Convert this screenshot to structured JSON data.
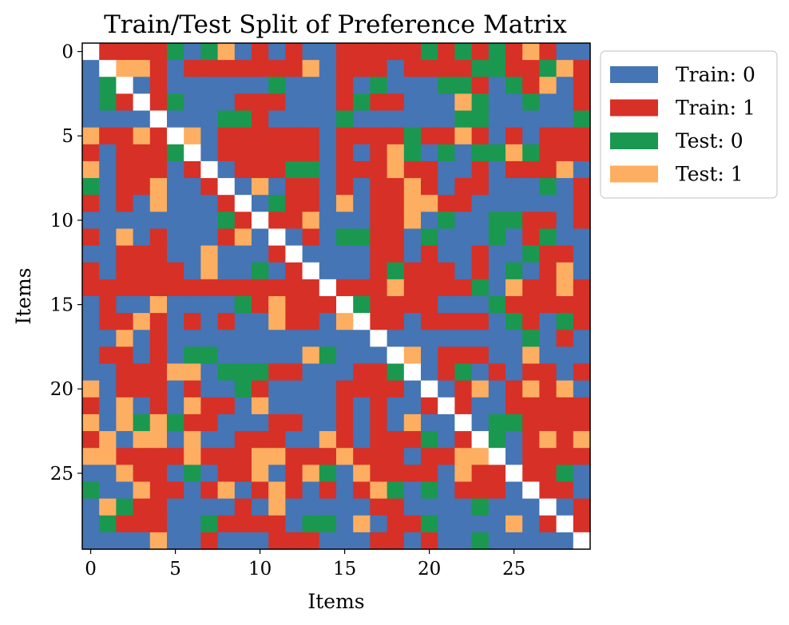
{
  "chart_data": {
    "type": "heatmap",
    "title": "Train/Test Split of Preference Matrix",
    "xlabel": "Items",
    "ylabel": "Items",
    "n": 30,
    "x_ticks": [
      0,
      5,
      10,
      15,
      20,
      25
    ],
    "y_ticks": [
      0,
      5,
      10,
      15,
      20,
      25
    ],
    "legend": {
      "placement": "outside-right",
      "entries": [
        {
          "code": 0,
          "label": "Train: 0",
          "color": "#4575b4"
        },
        {
          "code": 1,
          "label": "Train: 1",
          "color": "#d73027"
        },
        {
          "code": 2,
          "label": "Test: 0",
          "color": "#1a9850"
        },
        {
          "code": 3,
          "label": "Test: 1",
          "color": "#fdae61"
        }
      ]
    },
    "diagonal": "blank",
    "note_matrix_codes": "0=Train:0, 1=Train:1, 2=Test:0, 3=Test:1, -1=diagonal (empty)",
    "matrix": [
      [
        -1,
        1,
        1,
        1,
        1,
        2,
        0,
        2,
        3,
        0,
        1,
        0,
        1,
        0,
        0,
        1,
        1,
        1,
        1,
        1,
        2,
        1,
        2,
        1,
        2,
        1,
        3,
        1,
        0,
        0
      ],
      [
        0,
        -1,
        3,
        3,
        1,
        0,
        1,
        1,
        1,
        1,
        1,
        1,
        1,
        3,
        0,
        1,
        1,
        1,
        0,
        1,
        1,
        1,
        1,
        2,
        2,
        1,
        1,
        2,
        3,
        1
      ],
      [
        0,
        2,
        -1,
        0,
        1,
        0,
        0,
        0,
        0,
        0,
        0,
        2,
        0,
        0,
        0,
        1,
        0,
        2,
        0,
        0,
        0,
        2,
        2,
        1,
        0,
        2,
        1,
        3,
        0,
        1
      ],
      [
        0,
        2,
        1,
        -1,
        1,
        2,
        0,
        0,
        0,
        1,
        1,
        1,
        0,
        0,
        0,
        1,
        2,
        1,
        1,
        0,
        0,
        0,
        3,
        2,
        0,
        0,
        2,
        0,
        0,
        1
      ],
      [
        0,
        0,
        0,
        0,
        -1,
        0,
        0,
        0,
        2,
        2,
        1,
        0,
        0,
        0,
        0,
        2,
        0,
        0,
        0,
        0,
        0,
        0,
        2,
        2,
        0,
        0,
        0,
        0,
        0,
        2
      ],
      [
        3,
        1,
        1,
        3,
        1,
        -1,
        3,
        0,
        1,
        1,
        1,
        1,
        1,
        1,
        0,
        1,
        1,
        1,
        1,
        2,
        1,
        1,
        3,
        1,
        0,
        1,
        0,
        1,
        1,
        1
      ],
      [
        1,
        0,
        1,
        1,
        1,
        2,
        -1,
        0,
        1,
        1,
        1,
        1,
        1,
        1,
        0,
        1,
        0,
        1,
        3,
        2,
        0,
        2,
        0,
        2,
        2,
        3,
        2,
        1,
        1,
        1
      ],
      [
        3,
        0,
        1,
        1,
        1,
        0,
        1,
        -1,
        0,
        1,
        1,
        1,
        2,
        2,
        0,
        1,
        1,
        1,
        3,
        1,
        1,
        0,
        0,
        1,
        0,
        1,
        1,
        1,
        3,
        0
      ],
      [
        2,
        0,
        1,
        1,
        3,
        0,
        0,
        1,
        -1,
        0,
        3,
        0,
        1,
        1,
        0,
        1,
        0,
        1,
        1,
        3,
        1,
        0,
        1,
        1,
        0,
        0,
        0,
        2,
        0,
        1
      ],
      [
        1,
        0,
        1,
        0,
        3,
        0,
        0,
        0,
        1,
        -1,
        0,
        2,
        1,
        1,
        0,
        3,
        0,
        1,
        1,
        3,
        3,
        1,
        1,
        0,
        0,
        0,
        0,
        0,
        0,
        1
      ],
      [
        0,
        0,
        0,
        0,
        0,
        0,
        0,
        0,
        2,
        1,
        -1,
        1,
        1,
        3,
        0,
        0,
        0,
        1,
        1,
        3,
        0,
        2,
        0,
        0,
        2,
        2,
        1,
        1,
        0,
        1
      ],
      [
        1,
        0,
        3,
        0,
        1,
        0,
        0,
        0,
        1,
        3,
        0,
        -1,
        0,
        1,
        0,
        2,
        2,
        1,
        1,
        0,
        2,
        0,
        0,
        0,
        2,
        0,
        1,
        2,
        0,
        0
      ],
      [
        0,
        0,
        1,
        1,
        1,
        0,
        0,
        3,
        0,
        0,
        0,
        1,
        -1,
        0,
        0,
        0,
        0,
        1,
        1,
        0,
        1,
        0,
        0,
        1,
        0,
        0,
        2,
        1,
        1,
        0
      ],
      [
        1,
        0,
        1,
        1,
        1,
        1,
        0,
        3,
        0,
        0,
        2,
        0,
        1,
        -1,
        0,
        0,
        0,
        1,
        2,
        1,
        1,
        1,
        0,
        1,
        0,
        2,
        0,
        1,
        3,
        0
      ],
      [
        1,
        1,
        1,
        1,
        1,
        1,
        1,
        1,
        1,
        1,
        1,
        1,
        1,
        1,
        -1,
        1,
        1,
        1,
        3,
        1,
        1,
        1,
        1,
        2,
        0,
        3,
        1,
        1,
        3,
        1
      ],
      [
        0,
        1,
        0,
        0,
        3,
        0,
        0,
        0,
        0,
        2,
        1,
        3,
        1,
        1,
        1,
        -1,
        2,
        1,
        1,
        1,
        1,
        0,
        0,
        0,
        2,
        1,
        1,
        1,
        1,
        1
      ],
      [
        0,
        1,
        1,
        3,
        1,
        0,
        1,
        0,
        1,
        0,
        0,
        3,
        1,
        1,
        0,
        3,
        -1,
        1,
        1,
        0,
        1,
        1,
        1,
        1,
        0,
        2,
        1,
        0,
        2,
        1
      ],
      [
        0,
        0,
        3,
        0,
        1,
        0,
        0,
        0,
        0,
        0,
        0,
        0,
        0,
        0,
        0,
        0,
        0,
        -1,
        0,
        0,
        0,
        0,
        0,
        0,
        0,
        0,
        2,
        0,
        1,
        0
      ],
      [
        0,
        1,
        1,
        0,
        1,
        0,
        2,
        2,
        0,
        0,
        0,
        0,
        0,
        3,
        2,
        0,
        0,
        0,
        -1,
        3,
        0,
        1,
        1,
        1,
        0,
        0,
        3,
        0,
        0,
        0
      ],
      [
        0,
        0,
        1,
        1,
        1,
        3,
        3,
        0,
        2,
        2,
        2,
        1,
        1,
        0,
        0,
        0,
        1,
        1,
        2,
        -1,
        0,
        1,
        2,
        0,
        1,
        0,
        1,
        1,
        0,
        1
      ],
      [
        3,
        0,
        1,
        1,
        1,
        0,
        1,
        0,
        0,
        2,
        1,
        0,
        0,
        0,
        0,
        1,
        1,
        1,
        1,
        0,
        -1,
        0,
        1,
        3,
        0,
        1,
        3,
        1,
        3,
        0
      ],
      [
        1,
        0,
        3,
        0,
        1,
        0,
        3,
        1,
        1,
        0,
        3,
        0,
        0,
        0,
        0,
        1,
        0,
        1,
        0,
        0,
        1,
        -1,
        1,
        0,
        0,
        1,
        1,
        1,
        1,
        1
      ],
      [
        3,
        0,
        3,
        2,
        3,
        2,
        1,
        1,
        0,
        0,
        0,
        1,
        1,
        0,
        0,
        1,
        0,
        1,
        0,
        3,
        0,
        0,
        -1,
        0,
        2,
        2,
        1,
        1,
        1,
        1
      ],
      [
        1,
        3,
        0,
        3,
        3,
        0,
        3,
        0,
        0,
        1,
        1,
        1,
        0,
        0,
        3,
        1,
        0,
        1,
        1,
        1,
        2,
        0,
        1,
        -1,
        2,
        0,
        1,
        3,
        1,
        3
      ],
      [
        3,
        3,
        1,
        1,
        1,
        1,
        3,
        1,
        1,
        1,
        3,
        3,
        1,
        1,
        1,
        3,
        1,
        1,
        1,
        0,
        1,
        1,
        3,
        3,
        -1,
        0,
        1,
        1,
        1,
        1
      ],
      [
        0,
        0,
        3,
        1,
        1,
        0,
        2,
        0,
        1,
        1,
        3,
        0,
        1,
        3,
        2,
        0,
        3,
        1,
        1,
        1,
        1,
        0,
        3,
        1,
        1,
        -1,
        1,
        1,
        2,
        0
      ],
      [
        2,
        0,
        0,
        3,
        1,
        1,
        0,
        1,
        3,
        0,
        1,
        3,
        1,
        0,
        1,
        0,
        1,
        3,
        2,
        0,
        2,
        0,
        1,
        1,
        1,
        0,
        -1,
        1,
        1,
        0
      ],
      [
        0,
        3,
        2,
        1,
        1,
        0,
        0,
        0,
        0,
        1,
        0,
        3,
        0,
        0,
        0,
        0,
        0,
        1,
        1,
        0,
        0,
        0,
        0,
        2,
        0,
        0,
        0,
        -1,
        0,
        1
      ],
      [
        0,
        2,
        1,
        1,
        1,
        0,
        0,
        2,
        1,
        1,
        1,
        1,
        0,
        2,
        2,
        0,
        3,
        0,
        1,
        1,
        2,
        0,
        0,
        0,
        0,
        3,
        0,
        1,
        -1,
        1
      ],
      [
        0,
        0,
        0,
        0,
        3,
        0,
        0,
        1,
        0,
        0,
        0,
        1,
        1,
        1,
        0,
        0,
        0,
        1,
        1,
        0,
        1,
        0,
        0,
        2,
        0,
        0,
        0,
        0,
        0,
        -1
      ]
    ]
  }
}
